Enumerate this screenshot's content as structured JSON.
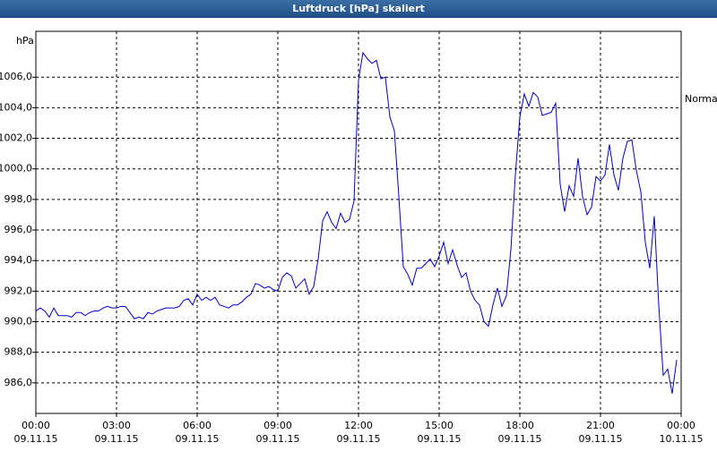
{
  "chart_data": {
    "type": "line",
    "title": "Luftdruck [hPa] skaliert",
    "y_label": "hPa",
    "x": [
      0,
      10,
      20,
      30,
      40,
      50,
      60,
      70,
      80,
      90,
      100,
      110,
      120,
      130,
      140,
      150,
      160,
      170,
      180,
      190,
      200,
      210,
      220,
      230,
      240,
      250,
      260,
      270,
      280,
      290,
      300,
      310,
      320,
      330,
      340,
      350,
      360,
      370,
      380,
      390,
      400,
      410,
      420,
      430,
      440,
      450,
      460,
      470,
      480,
      490,
      500,
      510,
      520,
      530,
      540,
      550,
      560,
      570,
      580,
      590,
      600,
      610,
      620,
      630,
      640,
      650,
      660,
      670,
      680,
      690,
      700,
      710,
      720,
      730,
      740,
      750,
      760,
      770,
      780,
      790,
      800,
      810,
      820,
      830,
      840,
      850,
      860,
      870,
      880,
      890,
      900,
      910,
      920,
      930,
      940,
      950,
      960,
      970,
      980,
      990,
      1000,
      1010,
      1020,
      1030,
      1040,
      1050,
      1060,
      1070,
      1080,
      1090,
      1100,
      1110,
      1120,
      1130,
      1140,
      1150,
      1160,
      1170,
      1180,
      1190,
      1200,
      1210,
      1220,
      1230,
      1240,
      1250,
      1260,
      1270,
      1280,
      1290,
      1300,
      1310,
      1320,
      1330,
      1340,
      1350,
      1360,
      1370,
      1380,
      1390,
      1400,
      1410,
      1420,
      1430
    ],
    "series": [
      {
        "name": "Normal",
        "color": "#0000c8",
        "values": [
          990.7,
          990.9,
          990.7,
          990.3,
          990.9,
          990.4,
          990.4,
          990.4,
          990.3,
          990.6,
          990.6,
          990.4,
          990.6,
          990.7,
          990.7,
          990.9,
          991.0,
          990.9,
          990.9,
          991.0,
          991.0,
          990.6,
          990.2,
          990.3,
          990.2,
          990.6,
          990.5,
          990.7,
          990.8,
          990.9,
          990.9,
          990.9,
          991.0,
          991.4,
          991.5,
          991.1,
          991.8,
          991.4,
          991.6,
          991.4,
          991.6,
          991.1,
          991.0,
          990.9,
          991.1,
          991.1,
          991.3,
          991.6,
          991.8,
          992.5,
          992.4,
          992.2,
          992.3,
          992.1,
          992.0,
          992.9,
          993.2,
          993.0,
          992.2,
          992.5,
          992.8,
          991.8,
          992.3,
          994.1,
          996.6,
          997.2,
          996.5,
          996.1,
          997.1,
          996.5,
          996.7,
          997.9,
          1005.8,
          1007.6,
          1007.2,
          1006.9,
          1007.1,
          1005.9,
          1006.0,
          1003.4,
          1002.5,
          998.2,
          993.6,
          993.1,
          992.4,
          993.5,
          993.5,
          993.8,
          994.1,
          993.6,
          994.3,
          995.2,
          993.8,
          994.7,
          993.7,
          992.9,
          993.2,
          992.0,
          991.4,
          991.1,
          990.0,
          989.7,
          991.1,
          992.2,
          991.0,
          991.7,
          994.7,
          999.6,
          1003.4,
          1004.9,
          1004.1,
          1005.0,
          1004.7,
          1003.5,
          1003.6,
          1003.7,
          1004.3,
          999.0,
          997.2,
          998.9,
          998.2,
          1000.7,
          998.2,
          997.0,
          997.5,
          999.5,
          999.2,
          999.6,
          1001.6,
          999.6,
          998.6,
          1000.7,
          1001.8,
          1001.9,
          999.9,
          998.5,
          995.2,
          993.5,
          996.9,
          991.1,
          986.5,
          986.9,
          985.3,
          987.5
        ]
      }
    ],
    "xlim": [
      0,
      1440
    ],
    "xticks": [
      {
        "value": 0,
        "label": "00:00"
      },
      {
        "value": 180,
        "label": "03:00"
      },
      {
        "value": 360,
        "label": "06:00"
      },
      {
        "value": 540,
        "label": "09:00"
      },
      {
        "value": 720,
        "label": "12:00"
      },
      {
        "value": 900,
        "label": "15:00"
      },
      {
        "value": 1080,
        "label": "18:00"
      },
      {
        "value": 1260,
        "label": "21:00"
      },
      {
        "value": 1440,
        "label": "00:00"
      }
    ],
    "xtick_dates": [
      "09.11.15",
      "09.11.15",
      "09.11.15",
      "09.11.15",
      "09.11.15",
      "09.11.15",
      "09.11.15",
      "09.11.15",
      "10.11.15"
    ],
    "ylim": [
      984,
      1009
    ],
    "yticks": [
      {
        "value": 986,
        "label": "986,0"
      },
      {
        "value": 988,
        "label": "988,0"
      },
      {
        "value": 990,
        "label": "990,0"
      },
      {
        "value": 992,
        "label": "992,0"
      },
      {
        "value": 994,
        "label": "994,0"
      },
      {
        "value": 996,
        "label": "996,0"
      },
      {
        "value": 998,
        "label": "998,0"
      },
      {
        "value": 1000,
        "label": "1000,0"
      },
      {
        "value": 1002,
        "label": "1002,0"
      },
      {
        "value": 1004,
        "label": "1004,0"
      },
      {
        "value": 1006,
        "label": "1006,0"
      }
    ],
    "grid": true,
    "legend": "right"
  }
}
